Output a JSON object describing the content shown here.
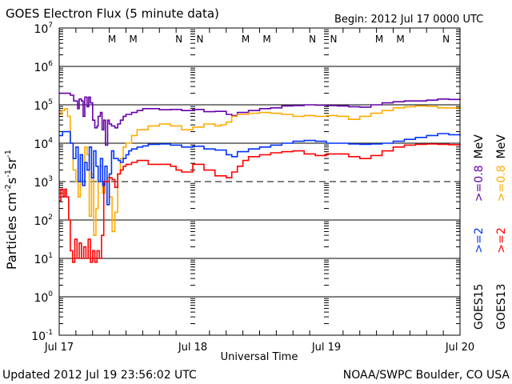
{
  "chart_data": {
    "type": "line",
    "title": "GOES Electron Flux (5 minute data)",
    "begin_label": "Begin: 2012 Jul 17 0000 UTC",
    "xlabel": "Universal Time",
    "ylabel_main": "Particles cm",
    "ylabel_sup1": "-2",
    "ylabel_s": "s",
    "ylabel_sup2": "-1",
    "ylabel_sr": "sr",
    "ylabel_sup3": "-1",
    "ylim_log10": [
      -1,
      7
    ],
    "xlim_hours": [
      0,
      72
    ],
    "yscale": "log",
    "grid": true,
    "y_ticks": [
      {
        "exp": "7",
        "value": 7
      },
      {
        "exp": "6",
        "value": 6
      },
      {
        "exp": "5",
        "value": 5
      },
      {
        "exp": "4",
        "value": 4
      },
      {
        "exp": "3",
        "value": 3
      },
      {
        "exp": "2",
        "value": 2
      },
      {
        "exp": "1",
        "value": 1
      },
      {
        "exp": "0",
        "value": 0
      },
      {
        "exp": "-1",
        "value": -1
      }
    ],
    "y_tick_base": "10",
    "x_ticks": [
      {
        "label": "Jul 17",
        "hour": 0
      },
      {
        "label": "Jul 18",
        "hour": 24
      },
      {
        "label": "Jul 19",
        "hour": 48
      },
      {
        "label": "Jul 20",
        "hour": 72
      }
    ],
    "markers": [
      {
        "text": "M",
        "hour": 9.5,
        "color": "#ff0000"
      },
      {
        "text": "M",
        "hour": 13.3,
        "color": "#0000ff"
      },
      {
        "text": "N",
        "hour": 21.5,
        "color": "#ff0000"
      },
      {
        "text": "N",
        "hour": 25.3,
        "color": "#0000ff"
      },
      {
        "text": "M",
        "hour": 33.5,
        "color": "#ff0000"
      },
      {
        "text": "M",
        "hour": 37.3,
        "color": "#0000ff"
      },
      {
        "text": "N",
        "hour": 45.5,
        "color": "#ff0000"
      },
      {
        "text": "N",
        "hour": 49.3,
        "color": "#0000ff"
      },
      {
        "text": "M",
        "hour": 57.5,
        "color": "#ff0000"
      },
      {
        "text": "M",
        "hour": 61.3,
        "color": "#0000ff"
      },
      {
        "text": "N",
        "hour": 69.5,
        "color": "#ff0000"
      },
      {
        "text": "N",
        "hour": 73.3,
        "color": "#0000ff"
      }
    ],
    "series": [
      {
        "name": "GOES15 >=0.8 MeV",
        "color": "#6600aa",
        "x_hours": [
          0,
          1.5,
          2,
          2.6,
          3,
          3.3,
          3.6,
          4,
          4.3,
          4.6,
          5,
          5.3,
          5.6,
          6,
          6.4,
          6.8,
          7,
          7.4,
          7.7,
          8,
          8.3,
          8.7,
          9,
          9.4,
          10,
          10.5,
          11,
          11.5,
          12,
          13,
          14,
          15,
          16,
          18,
          20,
          22,
          24,
          26,
          28,
          30,
          31,
          32,
          34,
          36,
          38,
          40,
          42,
          44,
          46,
          48,
          50,
          52,
          54,
          56,
          58,
          60,
          62,
          64,
          66,
          68,
          70,
          72
        ],
        "y_log10": [
          5.3,
          5.3,
          5.25,
          5.1,
          5.1,
          4.9,
          5.15,
          5.1,
          4.7,
          5.2,
          4.95,
          5.2,
          5.05,
          4.6,
          4.4,
          4.45,
          4.7,
          4.8,
          4.35,
          4.6,
          3.95,
          4.6,
          4.5,
          4.45,
          4.4,
          4.5,
          4.6,
          4.7,
          4.75,
          4.8,
          4.85,
          4.9,
          4.9,
          4.87,
          4.88,
          4.85,
          4.88,
          4.82,
          4.83,
          4.75,
          4.72,
          4.8,
          4.85,
          4.9,
          4.92,
          4.97,
          4.98,
          5.0,
          4.99,
          4.98,
          4.97,
          4.95,
          4.94,
          5.0,
          5.05,
          5.08,
          5.1,
          5.1,
          5.12,
          5.15,
          5.14,
          5.13
        ]
      },
      {
        "name": "GOES13 >=0.8 MeV",
        "color": "#ffaa00",
        "x_hours": [
          0,
          0.5,
          1,
          1.5,
          2,
          2.5,
          3,
          3.4,
          3.8,
          4.2,
          4.6,
          5,
          5.4,
          5.8,
          6.2,
          6.6,
          7,
          7.4,
          7.8,
          8.2,
          8.6,
          9,
          9.5,
          10,
          10.5,
          11,
          11.5,
          12,
          13,
          14,
          16,
          18,
          20,
          22,
          24,
          26,
          28,
          29,
          30,
          31,
          32,
          34,
          36,
          38,
          40,
          42,
          44,
          46,
          48,
          50,
          52,
          54,
          56,
          58,
          60,
          62,
          64,
          66,
          68,
          70,
          72
        ],
        "y_log10": [
          4.75,
          4.85,
          4.9,
          4.7,
          4.0,
          3.3,
          3.0,
          2.6,
          3.6,
          2.9,
          3.9,
          3.7,
          2.1,
          3.2,
          1.6,
          2.3,
          3.0,
          3.4,
          2.7,
          3.0,
          3.1,
          2.6,
          1.7,
          2.2,
          3.2,
          3.6,
          3.9,
          4.0,
          4.2,
          4.35,
          4.45,
          4.5,
          4.45,
          4.35,
          4.42,
          4.5,
          4.45,
          4.48,
          4.55,
          4.7,
          4.75,
          4.78,
          4.8,
          4.78,
          4.75,
          4.7,
          4.72,
          4.7,
          4.72,
          4.7,
          4.62,
          4.7,
          4.78,
          4.85,
          4.92,
          4.95,
          4.97,
          4.96,
          4.92,
          4.92,
          4.88
        ]
      },
      {
        "name": "GOES15 >=2 MeV",
        "color": "#0033ff",
        "x_hours": [
          0,
          0.6,
          1.5,
          2,
          2.5,
          3,
          3.4,
          3.8,
          4.2,
          4.6,
          5,
          5.4,
          5.8,
          6.2,
          6.6,
          7,
          7.4,
          7.8,
          8.2,
          8.6,
          9,
          9.4,
          9.8,
          10.2,
          10.6,
          11,
          11.5,
          12,
          12.5,
          13,
          14,
          15,
          16,
          18,
          20,
          22,
          24,
          26,
          28,
          30,
          31,
          32,
          34,
          36,
          38,
          40,
          42,
          44,
          46,
          48,
          50,
          52,
          54,
          56,
          58,
          60,
          62,
          64,
          66,
          68,
          70,
          72
        ],
        "y_log10": [
          4.2,
          4.3,
          4.3,
          4.0,
          3.6,
          3.9,
          3.0,
          3.7,
          2.9,
          3.5,
          3.3,
          3.9,
          3.1,
          3.8,
          3.4,
          3.0,
          3.6,
          2.9,
          3.4,
          2.4,
          3.2,
          3.8,
          3.6,
          3.6,
          3.55,
          3.5,
          3.6,
          3.7,
          3.8,
          3.85,
          3.9,
          3.93,
          3.97,
          3.98,
          3.95,
          3.9,
          3.92,
          3.85,
          3.82,
          3.7,
          3.65,
          3.78,
          3.85,
          3.9,
          3.95,
          4.0,
          4.05,
          4.07,
          4.05,
          4.0,
          4.0,
          3.98,
          3.97,
          3.98,
          4.0,
          4.05,
          4.1,
          4.15,
          4.2,
          4.25,
          4.22,
          4.2
        ]
      },
      {
        "name": "GOES13 >=2 MeV",
        "color": "#ff0000",
        "x_hours": [
          0,
          0.3,
          0.7,
          1,
          1.3,
          1.7,
          2,
          2.4,
          2.8,
          3.2,
          3.6,
          4,
          4.4,
          4.8,
          5.2,
          5.6,
          6,
          6.4,
          6.8,
          7.2,
          7.6,
          8,
          8.5,
          9,
          9.5,
          10,
          10.5,
          11,
          11.5,
          12,
          13,
          14,
          16,
          18,
          20,
          21,
          22,
          24,
          26,
          28,
          30,
          31,
          32,
          33,
          34,
          36,
          38,
          40,
          42,
          44,
          46,
          48,
          50,
          52,
          54,
          56,
          58,
          60,
          62,
          64,
          66,
          68,
          70,
          72
        ],
        "y_log10": [
          2.5,
          2.8,
          2.6,
          2.8,
          2.6,
          2.0,
          1.2,
          0.9,
          1.5,
          1.0,
          1.4,
          1.0,
          1.3,
          1.0,
          1.5,
          0.9,
          1.2,
          0.9,
          1.2,
          1.0,
          1.6,
          3.0,
          3.0,
          3.1,
          3.05,
          2.85,
          3.2,
          3.3,
          3.4,
          3.45,
          3.5,
          3.55,
          3.45,
          3.45,
          3.4,
          3.3,
          3.25,
          3.45,
          3.3,
          3.15,
          3.1,
          3.25,
          3.4,
          3.55,
          3.65,
          3.7,
          3.75,
          3.78,
          3.8,
          3.72,
          3.68,
          3.72,
          3.72,
          3.65,
          3.6,
          3.68,
          3.8,
          3.9,
          3.95,
          3.97,
          3.98,
          3.97,
          3.96,
          3.95
        ]
      }
    ],
    "legend": {
      "placement": "right",
      "goes15": {
        "sat": "GOES15",
        "low": ">=2",
        "high": ">=0.8",
        "unit": "MeV",
        "low_color": "#0033ff",
        "high_color": "#6600aa"
      },
      "goes13": {
        "sat": "GOES13",
        "low": ">=2",
        "high": ">=0.8",
        "unit": "MeV",
        "low_color": "#ff0000",
        "high_color": "#ffaa00"
      }
    },
    "threshold_line_log10": 3
  },
  "footer": {
    "updated": "Updated 2012 Jul 19 23:56:02 UTC",
    "credit": "NOAA/SWPC Boulder, CO USA"
  }
}
